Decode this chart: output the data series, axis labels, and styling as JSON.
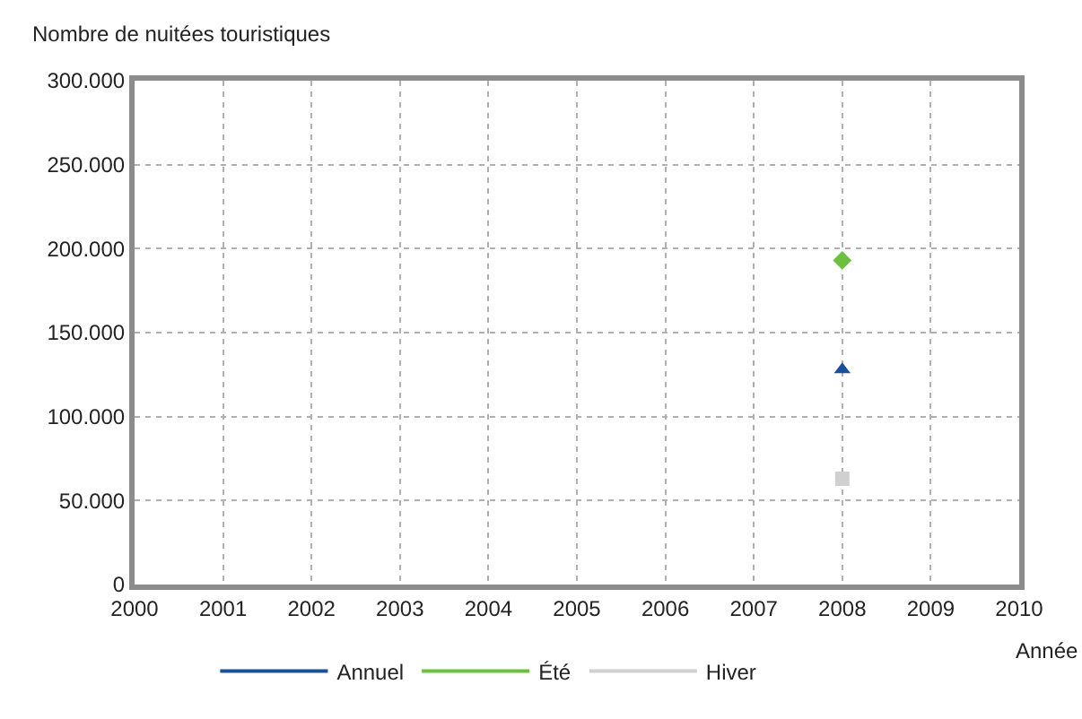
{
  "chart_data": {
    "type": "line",
    "ylabel": "Nombre de nuitées touristiques",
    "xlabel": "Année",
    "xlim": [
      2000,
      2010
    ],
    "xticks": [
      2000,
      2001,
      2002,
      2003,
      2004,
      2005,
      2006,
      2007,
      2008,
      2009,
      2010
    ],
    "ylim": [
      0,
      300000
    ],
    "yticks": [
      0,
      {
        "value": 50000,
        "label": "50.000"
      },
      {
        "value": 100000,
        "label": "100.000"
      },
      {
        "value": 150000,
        "label": "150.000"
      },
      {
        "value": 200000,
        "label": "200.000"
      },
      {
        "value": 250000,
        "label": "250.000"
      },
      {
        "value": 300000,
        "label": "300.000"
      }
    ],
    "grid": true,
    "legend": "bottom",
    "x": [
      2008
    ],
    "series": [
      {
        "name": "Annuel",
        "color": "#1a4f9c",
        "values": [
          128000
        ],
        "marker": "triangle"
      },
      {
        "name": "Été",
        "color": "#6cbf3f",
        "values": [
          193000
        ],
        "marker": "diamond"
      },
      {
        "name": "Hiver",
        "color": "#d0d0d0",
        "values": [
          63000
        ],
        "marker": "square"
      }
    ]
  }
}
